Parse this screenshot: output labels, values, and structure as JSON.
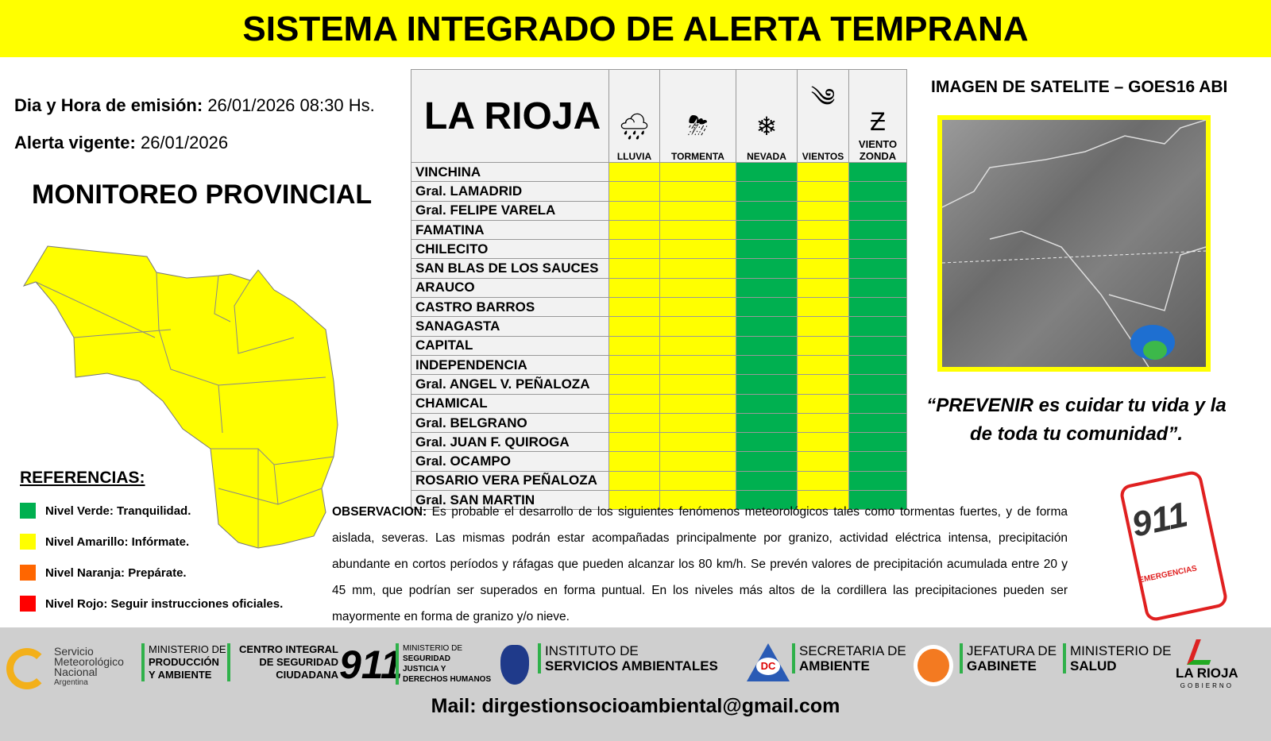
{
  "banner": "SISTEMA INTEGRADO DE ALERTA TEMPRANA",
  "emission": {
    "label": "Dia y Hora de emisión:",
    "value": "26/01/2026  08:30 Hs."
  },
  "valid": {
    "label": "Alerta vigente:",
    "value": "26/01/2026"
  },
  "monitor_title": "MONITOREO PROVINCIAL",
  "references": {
    "title": "REFERENCIAS:",
    "items": [
      {
        "label": "Nivel Verde: Tranquilidad.",
        "color": "#00b050"
      },
      {
        "label": "Nivel Amarillo: Infórmate.",
        "color": "#ffff00"
      },
      {
        "label": "Nivel Naranja: Prepárate.",
        "color": "#ff6600"
      },
      {
        "label": "Nivel Rojo: Seguir instrucciones oficiales.",
        "color": "#ff0000"
      }
    ]
  },
  "table": {
    "title": "LA RIOJA",
    "columns": [
      {
        "label": "LLUVIA",
        "icon": "rain-cloud-icon"
      },
      {
        "label": "TORMENTA",
        "icon": "storm-icon"
      },
      {
        "label": "NEVADA",
        "icon": "snowflake-icon"
      },
      {
        "label": "VIENTOS",
        "icon": "wind-icon"
      },
      {
        "label": "VIENTO ZONDA",
        "icon": "zonda-icon"
      }
    ],
    "colors": {
      "yellow": "#ffff00",
      "green": "#00b050"
    },
    "rows": [
      {
        "name": "VINCHINA",
        "levels": [
          "yellow",
          "yellow",
          "green",
          "yellow",
          "green"
        ]
      },
      {
        "name": "Gral. LAMADRID",
        "levels": [
          "yellow",
          "yellow",
          "green",
          "yellow",
          "green"
        ]
      },
      {
        "name": "Gral. FELIPE VARELA",
        "levels": [
          "yellow",
          "yellow",
          "green",
          "yellow",
          "green"
        ]
      },
      {
        "name": "FAMATINA",
        "levels": [
          "yellow",
          "yellow",
          "green",
          "yellow",
          "green"
        ]
      },
      {
        "name": "CHILECITO",
        "levels": [
          "yellow",
          "yellow",
          "green",
          "yellow",
          "green"
        ]
      },
      {
        "name": "SAN BLAS DE LOS SAUCES",
        "levels": [
          "yellow",
          "yellow",
          "green",
          "yellow",
          "green"
        ]
      },
      {
        "name": "ARAUCO",
        "levels": [
          "yellow",
          "yellow",
          "green",
          "yellow",
          "green"
        ]
      },
      {
        "name": "CASTRO BARROS",
        "levels": [
          "yellow",
          "yellow",
          "green",
          "yellow",
          "green"
        ]
      },
      {
        "name": "SANAGASTA",
        "levels": [
          "yellow",
          "yellow",
          "green",
          "yellow",
          "green"
        ]
      },
      {
        "name": "CAPITAL",
        "levels": [
          "yellow",
          "yellow",
          "green",
          "yellow",
          "green"
        ]
      },
      {
        "name": "INDEPENDENCIA",
        "levels": [
          "yellow",
          "yellow",
          "green",
          "yellow",
          "green"
        ]
      },
      {
        "name": "Gral. ANGEL V. PEÑALOZA",
        "levels": [
          "yellow",
          "yellow",
          "green",
          "yellow",
          "green"
        ]
      },
      {
        "name": "CHAMICAL",
        "levels": [
          "yellow",
          "yellow",
          "green",
          "yellow",
          "green"
        ]
      },
      {
        "name": "Gral. BELGRANO",
        "levels": [
          "yellow",
          "yellow",
          "green",
          "yellow",
          "green"
        ]
      },
      {
        "name": "Gral. JUAN F. QUIROGA",
        "levels": [
          "yellow",
          "yellow",
          "green",
          "yellow",
          "green"
        ]
      },
      {
        "name": "Gral. OCAMPO",
        "levels": [
          "yellow",
          "yellow",
          "green",
          "yellow",
          "green"
        ]
      },
      {
        "name": "ROSARIO VERA PEÑALOZA",
        "levels": [
          "yellow",
          "yellow",
          "green",
          "yellow",
          "green"
        ]
      },
      {
        "name": "Gral. SAN MARTIN",
        "levels": [
          "yellow",
          "yellow",
          "green",
          "yellow",
          "green"
        ]
      }
    ]
  },
  "satellite_title": "IMAGEN DE SATELITE – GOES16 ABI",
  "quote": "“PREVENIR es cuidar tu vida y la de toda tu comunidad”.",
  "observation": {
    "label": "OBSERVACION:",
    "text": "Es probable el desarrollo de los siguientes fenómenos meteorológicos tales como tormentas fuertes, y de forma aislada, severas. Las mismas podrán estar acompañadas principalmente por granizo, actividad eléctrica intensa, precipitación abundante en cortos períodos y ráfagas que pueden alcanzar los 80 km/h. Se prevén valores de precipitación acumulada entre 20 y 45 mm, que podrían ser superados en forma puntual. En los niveles más altos de la cordillera las precipitaciones pueden ser mayormente en forma de granizo y/o nieve."
  },
  "emergency": {
    "number": "911",
    "label": "EMERGENCIAS"
  },
  "footer": {
    "smn": [
      "Servicio",
      "Meteorológico",
      "Nacional",
      "Argentina"
    ],
    "produccion": [
      "MINISTERIO DE",
      "PRODUCCIÓN",
      "Y AMBIENTE"
    ],
    "centro": [
      "CENTRO INTEGRAL",
      "DE SEGURIDAD",
      "CIUDADANA",
      "911"
    ],
    "seguridad": [
      "MINISTERIO DE",
      "SEGURIDAD",
      "JUSTICIA Y",
      "DERECHOS HUMANOS"
    ],
    "instituto": [
      "INSTITUTO DE",
      "SERVICIOS AMBIENTALES"
    ],
    "dc": "DC",
    "secretaria": [
      "SECRETARIA DE",
      "AMBIENTE"
    ],
    "jefatura": [
      "JEFATURA DE",
      "GABINETE"
    ],
    "salud": [
      "MINISTERIO DE",
      "SALUD"
    ],
    "gobierno": [
      "LA RIOJA",
      "GOBIERNO"
    ],
    "mail": "Mail: dirgestionsocioambiental@gmail.com"
  }
}
